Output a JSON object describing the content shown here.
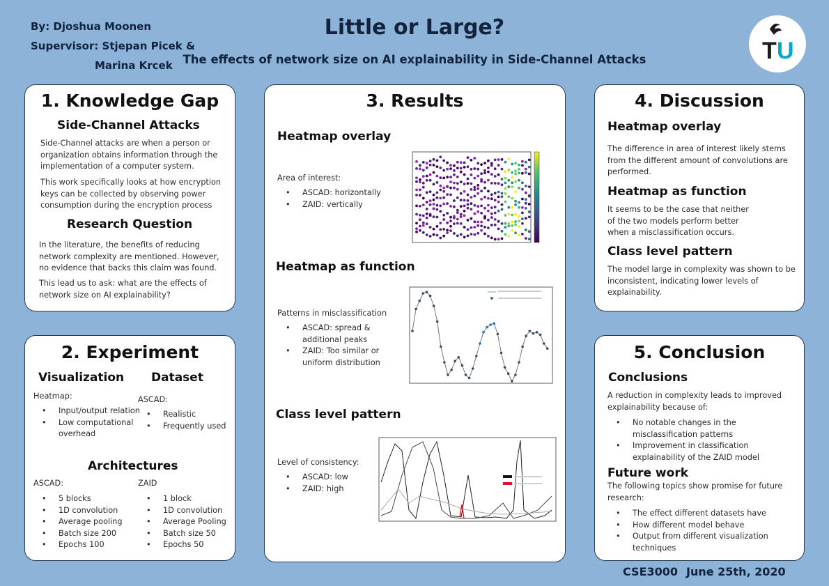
{
  "header": {
    "by": "By: Djoshua Moonen",
    "supervisor_line1": "Supervisor: Stjepan Picek &",
    "supervisor_line2": "Marina Krcek",
    "title": "Little or Large?",
    "subtitle": "The effects of network size on AI explainability in Side-Channel Attacks",
    "logo_text": "TU"
  },
  "knowledge_gap": {
    "heading": "1. Knowledge Gap",
    "sca_title": "Side-Channel Attacks",
    "sca_p1": "Side-Channel attacks are when a person or organization obtains information through the implementation of a computer system.",
    "sca_p2": "This work specifically looks at how encryption keys can be collected by observing power consumption during the encryption process",
    "rq_title": "Research Question",
    "rq_p1": "In the literature, the benefits of reducing network complexity are mentioned. However, no evidence that backs this claim was found.",
    "rq_p2": "This lead us to ask: what are the effects of network size on AI explainability?"
  },
  "experiment": {
    "heading": "2. Experiment",
    "vis_title": "Visualization",
    "vis_label": "Heatmap:",
    "vis_items": [
      "Input/output relation",
      "Low computational overhead"
    ],
    "ds_title": "Dataset",
    "ds_label": "ASCAD:",
    "ds_items": [
      "Realistic",
      "Frequently used"
    ],
    "arch_title": "Architectures",
    "ascad_label": "ASCAD:",
    "ascad_items": [
      "5   blocks",
      "1D convolution",
      "Average pooling",
      "Batch size 200",
      "Epochs 100"
    ],
    "zaid_label": "ZAID",
    "zaid_items": [
      "1 block",
      "1D convolution",
      "Average Pooling",
      "Batch size 50",
      "Epochs 50"
    ]
  },
  "results": {
    "heading": "3. Results",
    "hm_title": "Heatmap overlay",
    "hm_label": "Area of interest:",
    "hm_items": [
      "ASCAD: horizontally",
      "ZAID: vertically"
    ],
    "hf_title": "Heatmap as function",
    "hf_label": "Patterns in misclassification",
    "hf_items": [
      "ASCAD: spread & additional peaks",
      "ZAID:  Too similar or uniform distribution"
    ],
    "cl_title": "Class level pattern",
    "cl_label": "Level of consistency:",
    "cl_items": [
      "ASCAD: low",
      "ZAID: high"
    ]
  },
  "discussion": {
    "heading": "4. Discussion",
    "hm_title": "Heatmap overlay",
    "hm_text": "The difference in area of interest likely stems from the different amount of convolutions are performed.",
    "hf_title": "Heatmap as function",
    "hf_text": "It seems to be the case that neither of the two models perform better  when a misclassification occurs.",
    "cl_title": "Class level pattern",
    "cl_text": "The model large in complexity was shown to be inconsistent, indicating lower levels of explainability."
  },
  "conclusion": {
    "heading": "5. Conclusion",
    "c_title": "Conclusions",
    "c_text": "A reduction in complexity leads to improved explainability because of:",
    "c_items": [
      "No notable changes in the misclassification patterns",
      "Improvement in classification explainability of the ZAID model"
    ],
    "fw_title": "Future work",
    "fw_text": "The following topics  show promise for future research:",
    "fw_items": [
      "The effect different datasets have",
      "How different model behave",
      "Output from different visualization techniques"
    ]
  },
  "footer": {
    "course": "CSE3000",
    "date": "June 25th,  2020"
  },
  "colors": {
    "background": "#8db3d8",
    "title_navy": "#12233d",
    "logo_cyan": "#00a6d6",
    "highlight_red": "#e0102a"
  }
}
